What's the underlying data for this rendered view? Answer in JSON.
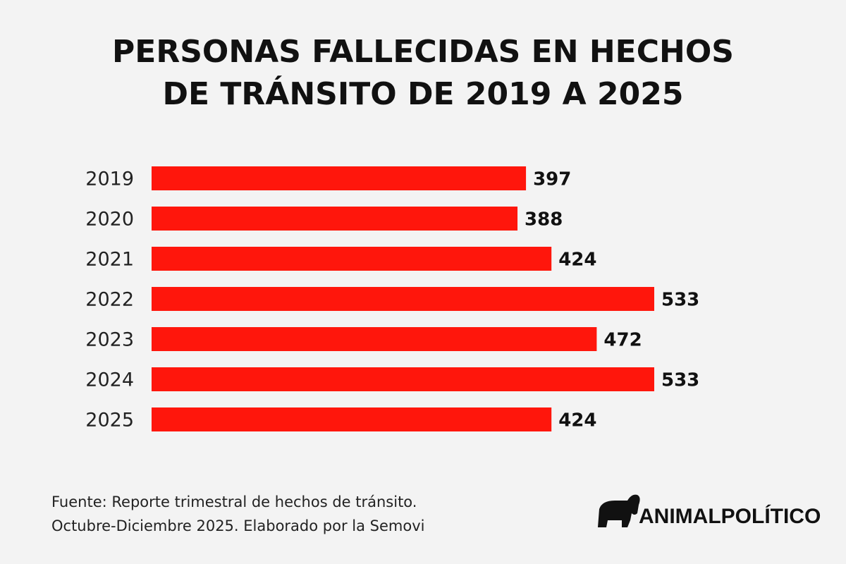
{
  "chart_data": {
    "type": "bar",
    "orientation": "horizontal",
    "title": [
      "PERSONAS FALLECIDAS EN HECHOS",
      "DE TRÁNSITO DE 2019 A 2025"
    ],
    "categories": [
      "2019",
      "2020",
      "2021",
      "2022",
      "2023",
      "2024",
      "2025"
    ],
    "values": [
      397,
      388,
      424,
      533,
      472,
      533,
      424
    ],
    "color": "#ff160c",
    "source": [
      "Fuente: Reporte trimestral de hechos de tránsito.",
      "Octubre-Diciembre 2025. Elaborado por la Semovi"
    ],
    "logo": "ANIMALPOLÍTICO"
  }
}
